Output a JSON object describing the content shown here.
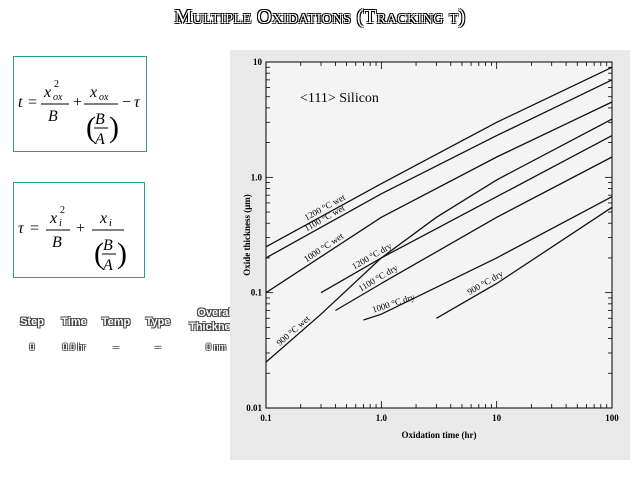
{
  "title": "Multiple Oxidations (Tracking τ)",
  "equations": {
    "eq1": {
      "lhs": "t",
      "num1": "x",
      "sup1": "2",
      "sub1": "ox",
      "den1": "B",
      "num2": "x",
      "sub2": "ox",
      "inner_num": "B",
      "inner_den": "A",
      "minus_term": "τ"
    },
    "eq2": {
      "lhs": "τ",
      "num1": "x",
      "sup1": "2",
      "sub1": "i",
      "den1": "B",
      "num2": "x",
      "sub2": "i",
      "inner_num": "B",
      "inner_den": "A"
    }
  },
  "table": {
    "headers": [
      "Step",
      "Time",
      "Temp",
      "Type",
      "Overall Thickness"
    ],
    "rows": [
      [
        "0",
        "0.0 hr",
        "--",
        "--",
        "0 nm"
      ]
    ]
  },
  "chart_data": {
    "type": "line",
    "title": "<111> Silicon",
    "xlabel": "Oxidation time (hr)",
    "ylabel": "Oxide thickness (μm)",
    "xscale": "log",
    "yscale": "log",
    "xlim": [
      0.1,
      100
    ],
    "ylim": [
      0.01,
      10
    ],
    "xticks": [
      "0.1",
      "1.0",
      "10",
      "100"
    ],
    "yticks": [
      "0.01",
      "0.1",
      "1.0",
      "10"
    ],
    "grid": false,
    "series": [
      {
        "name": "1200 °C wet",
        "x": [
          0.1,
          1,
          10,
          100
        ],
        "y": [
          0.25,
          0.88,
          3.0,
          9.0
        ]
      },
      {
        "name": "1100 °C wet",
        "x": [
          0.1,
          1,
          10,
          100
        ],
        "y": [
          0.2,
          0.72,
          2.3,
          7.0
        ]
      },
      {
        "name": "1000 °C wet",
        "x": [
          0.1,
          1,
          10,
          100
        ],
        "y": [
          0.1,
          0.45,
          1.5,
          4.5
        ]
      },
      {
        "name": "900 °C wet",
        "x": [
          0.1,
          0.3,
          1,
          3,
          10,
          100
        ],
        "y": [
          0.025,
          0.065,
          0.2,
          0.45,
          0.95,
          3.2
        ]
      },
      {
        "name": "1200 °C dry",
        "x": [
          0.3,
          1,
          10,
          100
        ],
        "y": [
          0.1,
          0.2,
          0.68,
          2.3
        ]
      },
      {
        "name": "1100 °C dry",
        "x": [
          0.4,
          1,
          10,
          100
        ],
        "y": [
          0.07,
          0.12,
          0.45,
          1.5
        ]
      },
      {
        "name": "1000 °C dry",
        "x": [
          0.7,
          1,
          10,
          100
        ],
        "y": [
          0.058,
          0.065,
          0.2,
          0.68
        ]
      },
      {
        "name": "900 °C dry",
        "x": [
          3,
          10,
          100
        ],
        "y": [
          0.06,
          0.12,
          0.55
        ]
      }
    ]
  }
}
